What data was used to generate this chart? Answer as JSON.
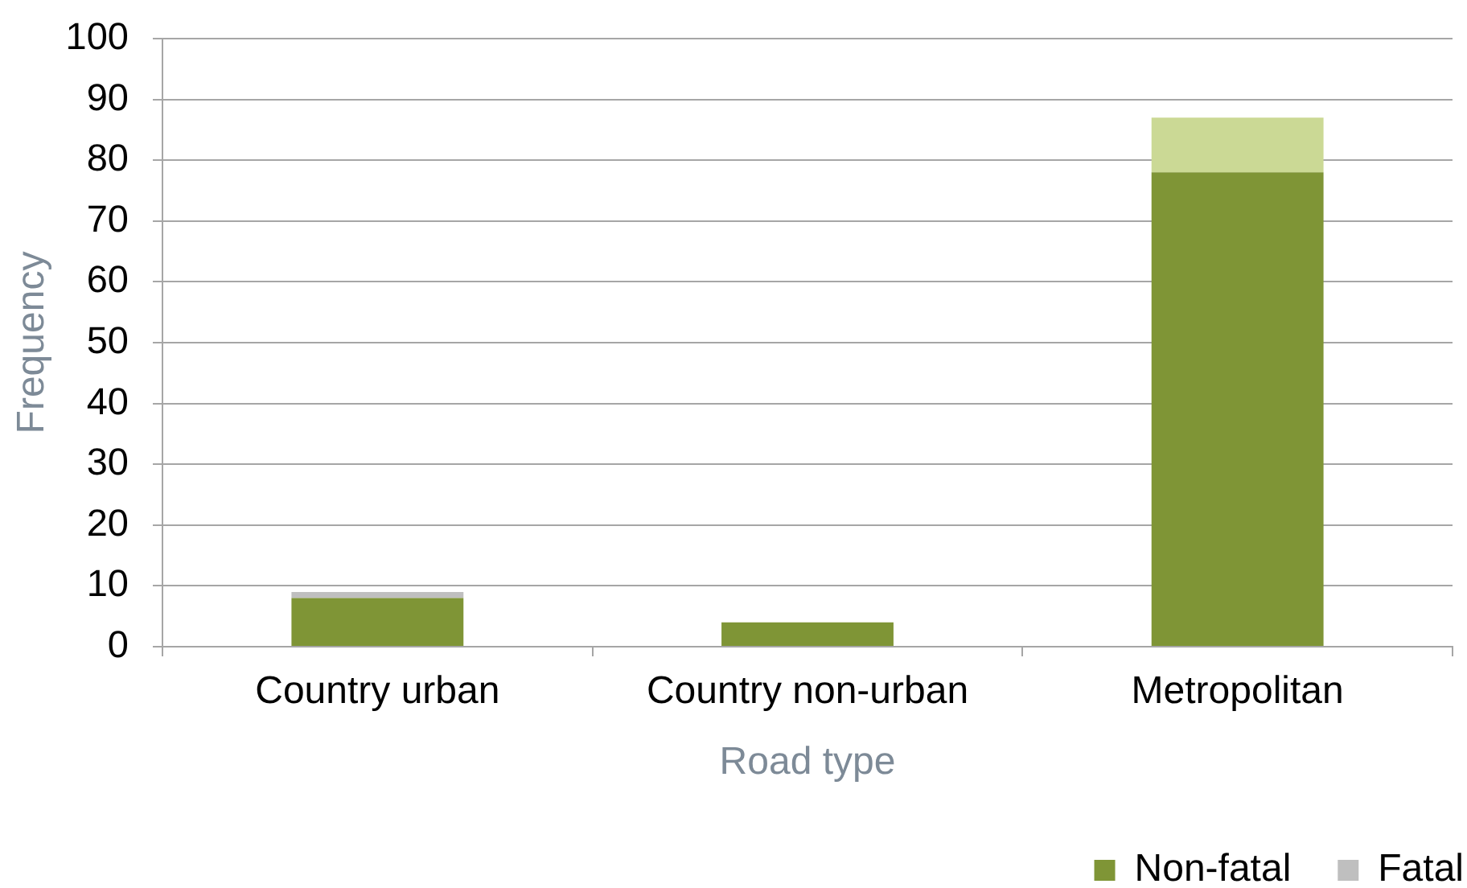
{
  "chart_data": {
    "type": "bar",
    "xlabel": "Road type",
    "ylabel": "Frequency",
    "categories": [
      "Country urban",
      "Country non-urban",
      "Metropolitan"
    ],
    "series": [
      {
        "name": "Non-fatal",
        "color": "#7f9536",
        "values": [
          8,
          4,
          78
        ]
      },
      {
        "name": "Fatal",
        "color": "#bfbfbf",
        "colors": [
          "#bfbfbf",
          "#bfbfbf",
          "#cbd995"
        ],
        "values": [
          1,
          0,
          9
        ]
      }
    ],
    "stacked": true,
    "ylim": [
      0,
      100
    ],
    "yticks": [
      0,
      10,
      20,
      30,
      40,
      50,
      60,
      70,
      80,
      90,
      100
    ],
    "grid": "y",
    "legend": "bottom right"
  }
}
